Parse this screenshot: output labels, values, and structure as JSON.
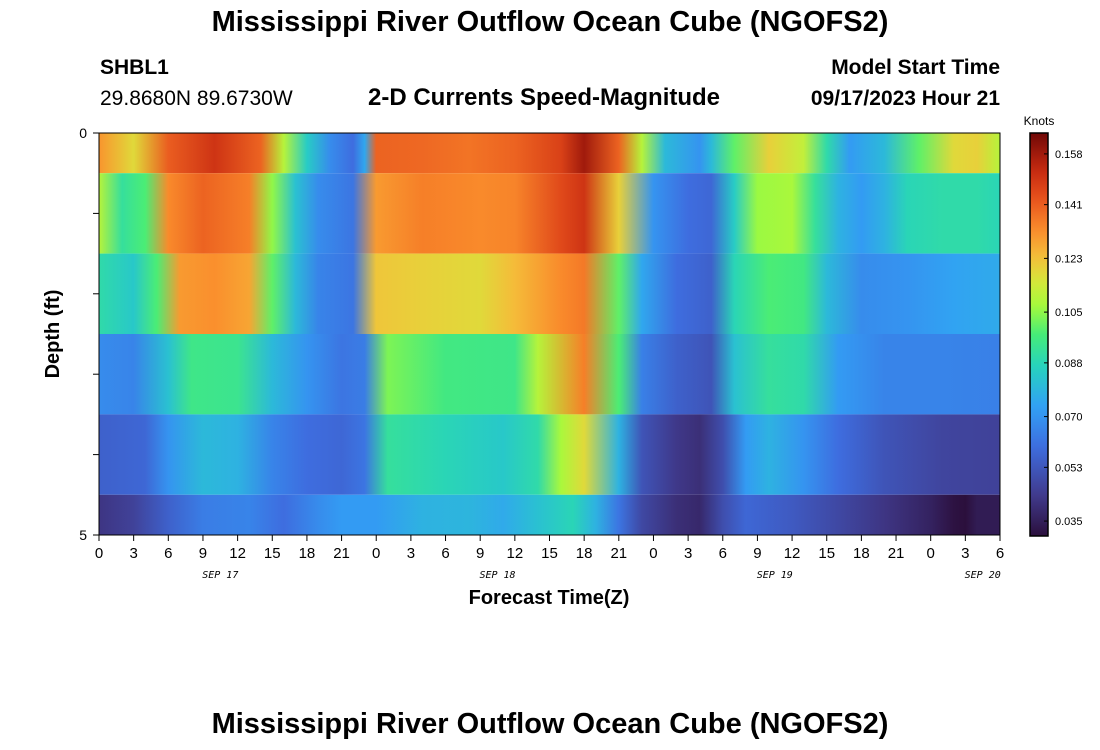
{
  "page": {
    "title": "Mississippi River Outflow Ocean Cube (NGOFS2)",
    "station_id": "SHBL1",
    "station_coords": "29.8680N  89.6730W",
    "subtitle": "2-D Currents Speed-Magnitude",
    "model_start_label": "Model Start Time",
    "model_start_value": "09/17/2023 Hour 21",
    "title_repeat": "Mississippi River Outflow Ocean Cube (NGOFS2)"
  },
  "chart_data": {
    "type": "heatmap",
    "title": "2-D Currents Speed-Magnitude",
    "xlabel": "Forecast Time(Z)",
    "ylabel": "Depth (ft)",
    "y_tick_labels": [
      "0",
      "5"
    ],
    "ylim": [
      0,
      5
    ],
    "y_reversed": true,
    "x_hours_range": [
      0,
      78
    ],
    "x_tick_labels": [
      "0",
      "3",
      "6",
      "9",
      "12",
      "15",
      "18",
      "21",
      "0",
      "3",
      "6",
      "9",
      "12",
      "15",
      "18",
      "21",
      "0",
      "3",
      "6",
      "9",
      "12",
      "15",
      "18",
      "21",
      "0",
      "3",
      "6"
    ],
    "date_labels": [
      {
        "label": "SEP 17",
        "hour": 10.5
      },
      {
        "label": "SEP 18",
        "hour": 34.5
      },
      {
        "label": "SEP 19",
        "hour": 58.5
      },
      {
        "label": "SEP 20",
        "hour": 76.5
      }
    ],
    "colorbar": {
      "unit": "Knots",
      "min": 0.03,
      "max": 0.165,
      "ticks": [
        "0.158",
        "0.141",
        "0.123",
        "0.105",
        "0.088",
        "0.070",
        "0.053",
        "0.035"
      ]
    },
    "layers": [
      {
        "depth_range": [
          0,
          0.5
        ],
        "keyframes": [
          [
            0,
            0.131
          ],
          [
            3,
            0.118
          ],
          [
            6,
            0.141
          ],
          [
            10,
            0.15
          ],
          [
            14,
            0.14
          ],
          [
            16,
            0.11
          ],
          [
            18,
            0.085
          ],
          [
            20,
            0.068
          ],
          [
            22,
            0.06
          ],
          [
            23,
            0.075
          ],
          [
            24,
            0.14
          ],
          [
            28,
            0.139
          ],
          [
            32,
            0.137
          ],
          [
            36,
            0.14
          ],
          [
            40,
            0.147
          ],
          [
            42,
            0.158
          ],
          [
            45,
            0.14
          ],
          [
            47,
            0.11
          ],
          [
            49,
            0.08
          ],
          [
            52,
            0.07
          ],
          [
            53,
            0.08
          ],
          [
            55,
            0.1
          ],
          [
            58,
            0.12
          ],
          [
            61,
            0.112
          ],
          [
            63,
            0.09
          ],
          [
            65,
            0.072
          ],
          [
            68,
            0.08
          ],
          [
            71,
            0.1
          ],
          [
            74,
            0.118
          ],
          [
            76,
            0.12
          ],
          [
            78,
            0.11
          ]
        ]
      },
      {
        "depth_range": [
          0.5,
          1.5
        ],
        "keyframes": [
          [
            0,
            0.11
          ],
          [
            2,
            0.092
          ],
          [
            4,
            0.098
          ],
          [
            6,
            0.133
          ],
          [
            9,
            0.14
          ],
          [
            13,
            0.135
          ],
          [
            15,
            0.105
          ],
          [
            17,
            0.082
          ],
          [
            19,
            0.068
          ],
          [
            22,
            0.062
          ],
          [
            24,
            0.13
          ],
          [
            28,
            0.135
          ],
          [
            33,
            0.133
          ],
          [
            36,
            0.134
          ],
          [
            40,
            0.145
          ],
          [
            42,
            0.15
          ],
          [
            45,
            0.12
          ],
          [
            48,
            0.07
          ],
          [
            51,
            0.06
          ],
          [
            53,
            0.058
          ],
          [
            55,
            0.085
          ],
          [
            57,
            0.106
          ],
          [
            60,
            0.108
          ],
          [
            62,
            0.092
          ],
          [
            64,
            0.078
          ],
          [
            66,
            0.072
          ],
          [
            68,
            0.078
          ],
          [
            70,
            0.088
          ],
          [
            73,
            0.09
          ],
          [
            76,
            0.09
          ],
          [
            78,
            0.088
          ]
        ]
      },
      {
        "depth_range": [
          1.5,
          2.5
        ],
        "keyframes": [
          [
            0,
            0.09
          ],
          [
            3,
            0.084
          ],
          [
            5,
            0.098
          ],
          [
            7,
            0.13
          ],
          [
            10,
            0.132
          ],
          [
            13,
            0.128
          ],
          [
            15,
            0.1
          ],
          [
            17,
            0.08
          ],
          [
            19,
            0.066
          ],
          [
            22,
            0.062
          ],
          [
            24,
            0.122
          ],
          [
            28,
            0.12
          ],
          [
            33,
            0.118
          ],
          [
            36,
            0.124
          ],
          [
            40,
            0.133
          ],
          [
            42,
            0.136
          ],
          [
            45,
            0.1
          ],
          [
            47,
            0.075
          ],
          [
            50,
            0.06
          ],
          [
            53,
            0.056
          ],
          [
            55,
            0.088
          ],
          [
            58,
            0.098
          ],
          [
            61,
            0.096
          ],
          [
            63,
            0.08
          ],
          [
            66,
            0.068
          ],
          [
            70,
            0.07
          ],
          [
            74,
            0.074
          ],
          [
            78,
            0.076
          ]
        ]
      },
      {
        "depth_range": [
          2.5,
          3.5
        ],
        "keyframes": [
          [
            0,
            0.068
          ],
          [
            3,
            0.066
          ],
          [
            6,
            0.082
          ],
          [
            8,
            0.095
          ],
          [
            12,
            0.094
          ],
          [
            15,
            0.08
          ],
          [
            18,
            0.07
          ],
          [
            21,
            0.062
          ],
          [
            23,
            0.064
          ],
          [
            25,
            0.103
          ],
          [
            30,
            0.096
          ],
          [
            36,
            0.095
          ],
          [
            38,
            0.11
          ],
          [
            42,
            0.135
          ],
          [
            45,
            0.098
          ],
          [
            47,
            0.065
          ],
          [
            50,
            0.056
          ],
          [
            53,
            0.052
          ],
          [
            55,
            0.082
          ],
          [
            58,
            0.092
          ],
          [
            61,
            0.09
          ],
          [
            64,
            0.072
          ],
          [
            68,
            0.066
          ],
          [
            73,
            0.066
          ],
          [
            78,
            0.065
          ]
        ]
      },
      {
        "depth_range": [
          3.5,
          4.5
        ],
        "keyframes": [
          [
            0,
            0.056
          ],
          [
            4,
            0.058
          ],
          [
            6,
            0.07
          ],
          [
            9,
            0.08
          ],
          [
            12,
            0.078
          ],
          [
            15,
            0.066
          ],
          [
            18,
            0.06
          ],
          [
            21,
            0.058
          ],
          [
            23,
            0.062
          ],
          [
            25,
            0.092
          ],
          [
            30,
            0.088
          ],
          [
            35,
            0.084
          ],
          [
            38,
            0.09
          ],
          [
            40,
            0.108
          ],
          [
            42,
            0.118
          ],
          [
            45,
            0.078
          ],
          [
            47,
            0.052
          ],
          [
            50,
            0.043
          ],
          [
            52,
            0.04
          ],
          [
            54,
            0.05
          ],
          [
            56,
            0.072
          ],
          [
            58,
            0.078
          ],
          [
            61,
            0.07
          ],
          [
            64,
            0.06
          ],
          [
            68,
            0.052
          ],
          [
            73,
            0.047
          ],
          [
            78,
            0.046
          ]
        ]
      },
      {
        "depth_range": [
          4.5,
          5
        ],
        "keyframes": [
          [
            0,
            0.042
          ],
          [
            3,
            0.046
          ],
          [
            6,
            0.056
          ],
          [
            9,
            0.064
          ],
          [
            13,
            0.066
          ],
          [
            16,
            0.06
          ],
          [
            19,
            0.068
          ],
          [
            21,
            0.072
          ],
          [
            24,
            0.072
          ],
          [
            28,
            0.078
          ],
          [
            32,
            0.079
          ],
          [
            35,
            0.076
          ],
          [
            38,
            0.082
          ],
          [
            41,
            0.088
          ],
          [
            43,
            0.078
          ],
          [
            45,
            0.062
          ],
          [
            47,
            0.048
          ],
          [
            50,
            0.04
          ],
          [
            52,
            0.038
          ],
          [
            54,
            0.05
          ],
          [
            56,
            0.058
          ],
          [
            60,
            0.054
          ],
          [
            64,
            0.048
          ],
          [
            68,
            0.042
          ],
          [
            72,
            0.036
          ],
          [
            74,
            0.031
          ],
          [
            75,
            0.03
          ],
          [
            76,
            0.034
          ],
          [
            78,
            0.034
          ]
        ]
      }
    ]
  }
}
